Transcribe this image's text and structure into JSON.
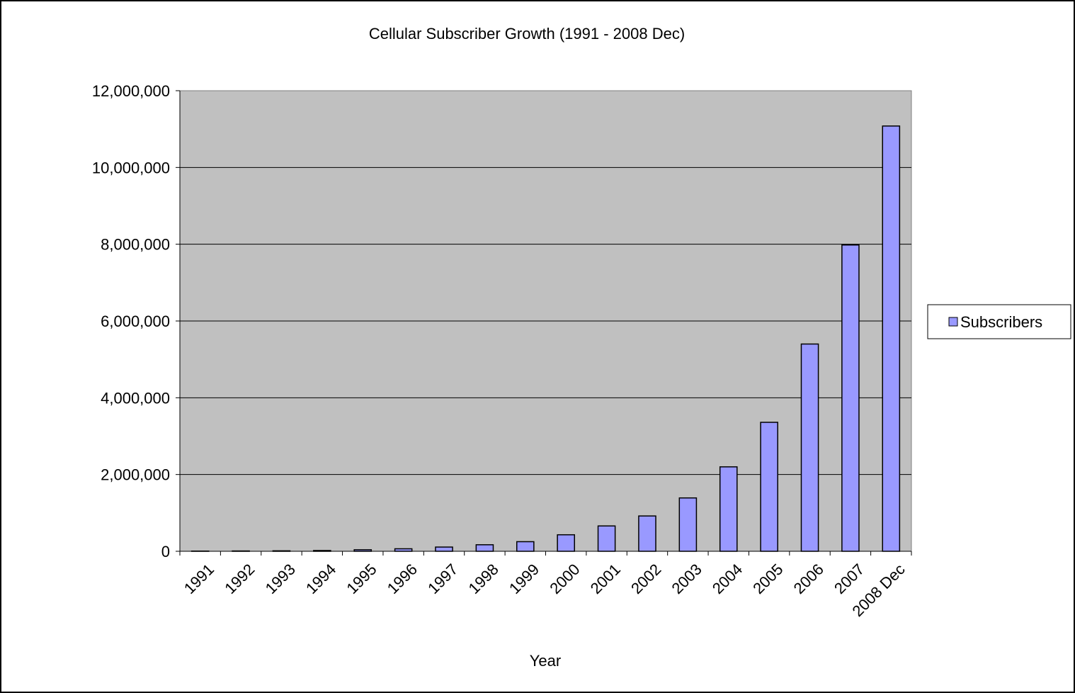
{
  "chart_data": {
    "type": "bar",
    "title": "Cellular Subscriber Growth (1991 - 2008 Dec)",
    "xlabel": "Year",
    "ylabel": "",
    "categories": [
      "1991",
      "1992",
      "1993",
      "1994",
      "1995",
      "1996",
      "1997",
      "1998",
      "1999",
      "2000",
      "2001",
      "2002",
      "2003",
      "2004",
      "2005",
      "2006",
      "2007",
      "2008 Dec"
    ],
    "series": [
      {
        "name": "Subscribers",
        "values": [
          5000,
          8000,
          12000,
          20000,
          40000,
          65000,
          110000,
          170000,
          250000,
          430000,
          660000,
          920000,
          1390000,
          2200000,
          3360000,
          5400000,
          7980000,
          11080000
        ]
      }
    ],
    "ylim": [
      0,
      12000000
    ],
    "yticks": [
      0,
      2000000,
      4000000,
      6000000,
      8000000,
      10000000,
      12000000
    ],
    "ytick_labels": [
      "0",
      "2,000,000",
      "4,000,000",
      "6,000,000",
      "8,000,000",
      "10,000,000",
      "12,000,000"
    ],
    "grid": true,
    "legend_position": "right",
    "colors": {
      "plot_background": "#c0c0c0",
      "bar_fill": "#9999ff",
      "bar_stroke": "#000000",
      "gridline": "#000000"
    }
  }
}
